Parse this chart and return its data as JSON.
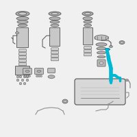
{
  "bg_color": "#f0f0f0",
  "border_color": "#bbbbbb",
  "highlight_color": "#00b8d4",
  "part_color": "#909090",
  "dark_color": "#505050",
  "mid_color": "#b0b0b0",
  "light_color": "#d0d0d0",
  "fig_width": 2.0,
  "fig_height": 2.0,
  "dpi": 100
}
